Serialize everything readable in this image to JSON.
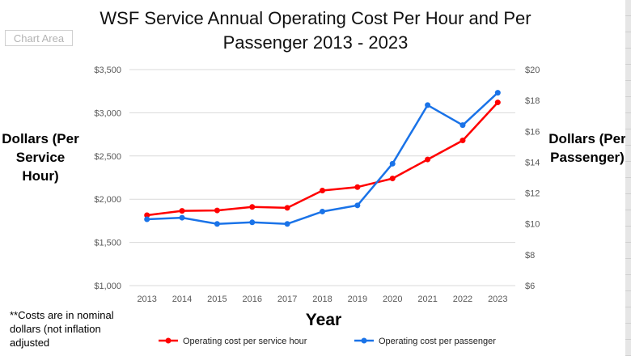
{
  "ui": {
    "chart_area_label": "Chart Area"
  },
  "note": "**Costs are in nominal dollars (not inflation adjusted",
  "chart_data": {
    "type": "line",
    "title": "WSF Service Annual Operating Cost Per Hour and Per Passenger 2013 - 2023",
    "xlabel": "Year",
    "ylabel": "Dollars (Per Service Hour)",
    "y2label": "Dollars (Per Passenger)",
    "x": [
      "2013",
      "2014",
      "2015",
      "2016",
      "2017",
      "2018",
      "2019",
      "2020",
      "2021",
      "2022",
      "2023"
    ],
    "ylim": [
      1000,
      3500
    ],
    "y2lim": [
      6,
      20
    ],
    "yticks": [
      "$1,000",
      "$1,500",
      "$2,000",
      "$2,500",
      "$3,000",
      "$3,500"
    ],
    "y2ticks": [
      "$6",
      "$8",
      "$10",
      "$12",
      "$14",
      "$16",
      "$18",
      "$20"
    ],
    "grid": true,
    "legend_position": "bottom",
    "series": [
      {
        "name": "Operating cost per service hour",
        "axis": "left",
        "color": "#ff0000",
        "values": [
          1815,
          1865,
          1870,
          1910,
          1900,
          2100,
          2140,
          2240,
          2460,
          2680,
          3120
        ]
      },
      {
        "name": "Operating cost per passenger",
        "axis": "right",
        "color": "#1a73e8",
        "values": [
          10.3,
          10.4,
          10.0,
          10.1,
          10.0,
          10.8,
          11.2,
          13.9,
          17.7,
          16.4,
          18.5
        ]
      }
    ]
  }
}
